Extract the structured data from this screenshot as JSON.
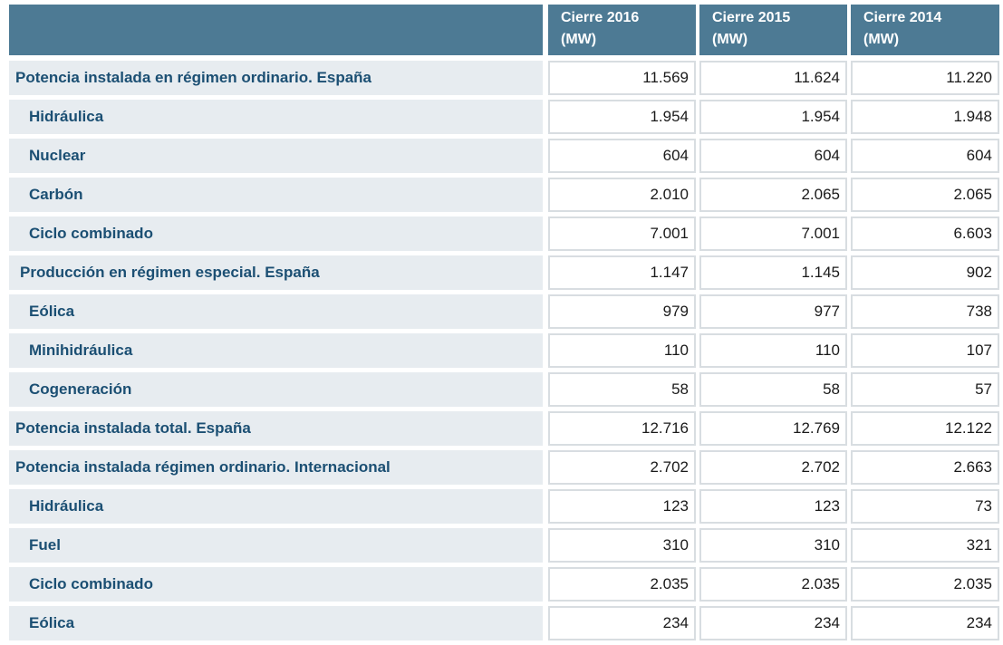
{
  "table": {
    "headers": [
      "",
      "Cierre 2016\n(MW)",
      "Cierre 2015\n(MW)",
      "Cierre 2014\n(MW)"
    ],
    "header_lines": [
      [
        "Cierre 2016",
        "(MW)"
      ],
      [
        "Cierre 2015",
        "(MW)"
      ],
      [
        "Cierre 2014",
        "(MW)"
      ]
    ],
    "rows": [
      {
        "label": "Potencia instalada en régimen ordinario. España",
        "level": 0,
        "values": [
          "11.569",
          "11.624",
          "11.220"
        ]
      },
      {
        "label": "Hidráulica",
        "level": 1,
        "values": [
          "1.954",
          "1.954",
          "1.948"
        ]
      },
      {
        "label": "Nuclear",
        "level": 1,
        "values": [
          "604",
          "604",
          "604"
        ]
      },
      {
        "label": "Carbón",
        "level": 1,
        "values": [
          "2.010",
          "2.065",
          "2.065"
        ]
      },
      {
        "label": "Ciclo combinado",
        "level": 1,
        "values": [
          "7.001",
          "7.001",
          "6.603"
        ]
      },
      {
        "label": "Producción en régimen especial. España",
        "level": 2,
        "values": [
          "1.147",
          "1.145",
          "902"
        ]
      },
      {
        "label": "Eólica",
        "level": 1,
        "values": [
          "979",
          "977",
          "738"
        ]
      },
      {
        "label": "Minihidráulica",
        "level": 1,
        "values": [
          "110",
          "110",
          "107"
        ]
      },
      {
        "label": "Cogeneración",
        "level": 1,
        "values": [
          "58",
          "58",
          "57"
        ]
      },
      {
        "label": "Potencia instalada total. España",
        "level": 0,
        "values": [
          "12.716",
          "12.769",
          "12.122"
        ]
      },
      {
        "label": "Potencia instalada régimen ordinario. Internacional",
        "level": 0,
        "values": [
          "2.702",
          "2.702",
          "2.663"
        ]
      },
      {
        "label": "Hidráulica",
        "level": 1,
        "values": [
          "123",
          "123",
          "73"
        ]
      },
      {
        "label": "Fuel",
        "level": 1,
        "values": [
          "310",
          "310",
          "321"
        ]
      },
      {
        "label": "Ciclo combinado",
        "level": 1,
        "values": [
          "2.035",
          "2.035",
          "2.035"
        ]
      },
      {
        "label": "Eólica",
        "level": 1,
        "values": [
          "234",
          "234",
          "234"
        ]
      }
    ]
  },
  "colors": {
    "header_bg": "#4d7a94",
    "label_bg": "#e7ecf0",
    "label_text": "#1b4f73",
    "cell_border": "#d8dde1"
  }
}
